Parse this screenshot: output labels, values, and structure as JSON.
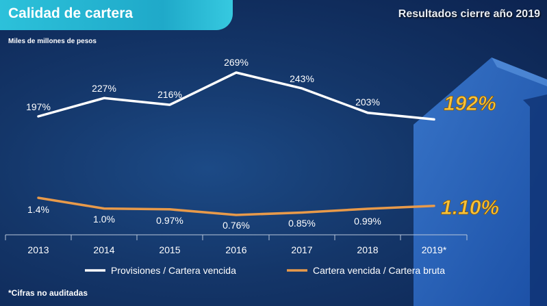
{
  "header": {
    "title": "Calidad de cartera",
    "section": "Resultados cierre año 2019",
    "units": "Miles de millones de pesos"
  },
  "footnote": "*Cifras no auditadas",
  "highlights": {
    "provisiones_latest": "192%",
    "cartera_latest": "1.10%"
  },
  "colors": {
    "provisiones": "#ffffff",
    "cartera": "#e89a4a",
    "highlight": "#f7c23b"
  },
  "chart_data": {
    "type": "line",
    "x": [
      "2013",
      "2014",
      "2015",
      "2016",
      "2017",
      "2018",
      "2019*"
    ],
    "series": [
      {
        "name": "Provisiones / Cartera vencida",
        "values": [
          197,
          227,
          216,
          269,
          243,
          203,
          192
        ],
        "labels": [
          "197%",
          "227%",
          "216%",
          "269%",
          "243%",
          "203%",
          ""
        ]
      },
      {
        "name": "Cartera vencida / Cartera bruta",
        "values": [
          1.4,
          1.0,
          0.97,
          0.76,
          0.85,
          0.99,
          1.1
        ],
        "labels": [
          "1.4%",
          "1.0%",
          "0.97%",
          "0.76%",
          "0.85%",
          "0.99%",
          ""
        ]
      }
    ],
    "legend": "bottom",
    "grid": false
  }
}
